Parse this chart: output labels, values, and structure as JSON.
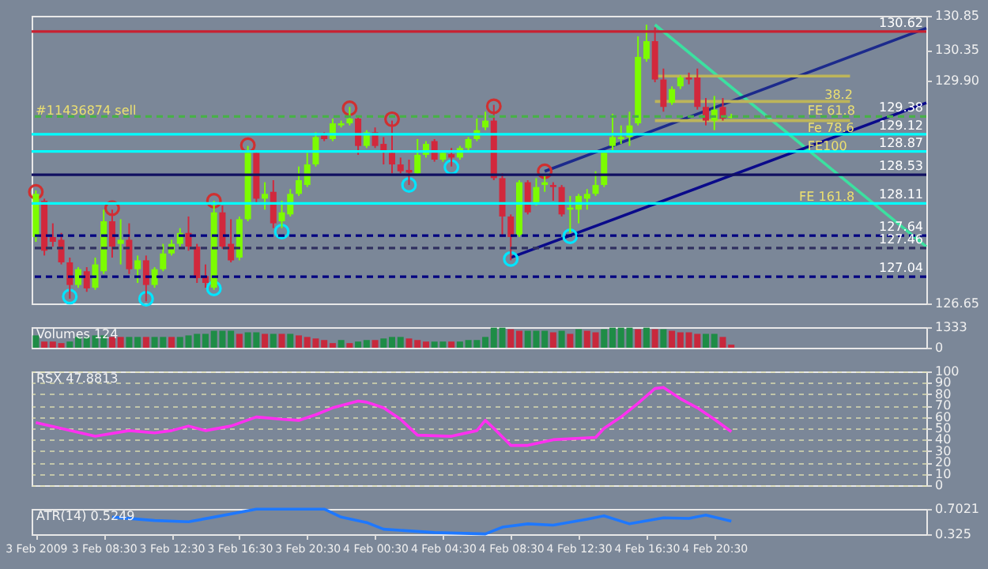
{
  "chart_data": [
    {
      "type": "candlestick",
      "x": [
        "2009-02-03T04:30",
        "2009-02-03T05:00",
        "2009-02-03T05:30",
        "2009-02-03T06:00",
        "2009-02-03T06:30",
        "2009-02-03T07:00",
        "2009-02-03T07:30",
        "2009-02-03T08:00",
        "2009-02-03T08:30",
        "2009-02-03T09:00",
        "2009-02-03T09:30",
        "2009-02-03T10:00",
        "2009-02-03T10:30",
        "2009-02-03T11:00",
        "2009-02-03T11:30",
        "2009-02-03T12:00",
        "2009-02-03T12:30",
        "2009-02-03T13:00",
        "2009-02-03T13:30",
        "2009-02-03T14:00",
        "2009-02-03T14:30",
        "2009-02-03T15:00",
        "2009-02-03T15:30",
        "2009-02-03T16:00",
        "2009-02-03T16:30",
        "2009-02-03T17:00",
        "2009-02-03T17:30",
        "2009-02-03T18:00",
        "2009-02-03T18:30",
        "2009-02-03T19:00",
        "2009-02-03T19:30",
        "2009-02-03T20:00",
        "2009-02-03T20:30",
        "2009-02-03T21:00",
        "2009-02-03T21:30",
        "2009-02-03T22:00",
        "2009-02-03T22:30",
        "2009-02-03T23:00",
        "2009-02-03T23:30",
        "2009-02-04T00:00",
        "2009-02-04T00:30",
        "2009-02-04T01:00",
        "2009-02-04T01:30",
        "2009-02-04T02:00",
        "2009-02-04T02:30",
        "2009-02-04T03:00",
        "2009-02-04T03:30",
        "2009-02-04T04:00",
        "2009-02-04T04:30",
        "2009-02-04T05:00",
        "2009-02-04T05:30",
        "2009-02-04T06:00",
        "2009-02-04T06:30",
        "2009-02-04T07:00",
        "2009-02-04T07:30",
        "2009-02-04T08:00",
        "2009-02-04T08:30",
        "2009-02-04T09:00",
        "2009-02-04T09:30",
        "2009-02-04T10:00",
        "2009-02-04T10:30",
        "2009-02-04T11:00",
        "2009-02-04T11:30",
        "2009-02-04T12:00",
        "2009-02-04T12:30",
        "2009-02-04T13:00",
        "2009-02-04T13:30",
        "2009-02-04T14:00",
        "2009-02-04T14:30",
        "2009-02-04T15:00",
        "2009-02-04T15:30",
        "2009-02-04T16:00",
        "2009-02-04T16:30",
        "2009-02-04T17:00",
        "2009-02-04T17:30",
        "2009-02-04T18:00",
        "2009-02-04T18:30",
        "2009-02-04T19:00",
        "2009-02-04T19:30",
        "2009-02-04T20:00",
        "2009-02-04T20:30",
        "2009-02-04T21:00",
        "2009-02-04T21:30"
      ],
      "ohlc": [
        [
          127.62,
          128.3,
          127.55,
          128.25
        ],
        [
          128.15,
          128.18,
          127.35,
          127.42
        ],
        [
          127.62,
          127.82,
          127.48,
          127.55
        ],
        [
          127.58,
          127.68,
          127.22,
          127.25
        ],
        [
          127.25,
          127.32,
          126.72,
          126.92
        ],
        [
          126.92,
          127.18,
          126.88,
          127.15
        ],
        [
          127.12,
          127.18,
          126.82,
          126.87
        ],
        [
          126.88,
          127.32,
          126.85,
          127.22
        ],
        [
          127.12,
          128.02,
          127.08,
          127.85
        ],
        [
          127.85,
          128.02,
          127.32,
          127.48
        ],
        [
          127.52,
          127.88,
          127.22,
          127.58
        ],
        [
          127.58,
          127.82,
          127.08,
          127.15
        ],
        [
          127.15,
          127.35,
          126.95,
          127.28
        ],
        [
          127.28,
          127.35,
          126.68,
          126.92
        ],
        [
          126.92,
          127.18,
          126.88,
          127.15
        ],
        [
          127.15,
          127.52,
          127.12,
          127.38
        ],
        [
          127.38,
          127.58,
          127.35,
          127.52
        ],
        [
          127.52,
          127.75,
          127.48,
          127.68
        ],
        [
          127.68,
          127.92,
          127.42,
          127.48
        ],
        [
          127.48,
          127.52,
          126.95,
          127.02
        ],
        [
          127.05,
          127.22,
          126.88,
          126.95
        ],
        [
          126.88,
          128.15,
          126.85,
          127.98
        ],
        [
          127.98,
          128.08,
          127.45,
          127.48
        ],
        [
          127.52,
          127.88,
          127.25,
          127.28
        ],
        [
          127.32,
          127.92,
          127.28,
          127.88
        ],
        [
          127.88,
          128.95,
          127.85,
          128.85
        ],
        [
          128.85,
          128.88,
          128.12,
          128.18
        ],
        [
          128.18,
          128.42,
          128.02,
          128.25
        ],
        [
          128.28,
          128.45,
          127.75,
          127.82
        ],
        [
          127.85,
          128.15,
          127.75,
          127.98
        ],
        [
          127.95,
          128.32,
          127.92,
          128.25
        ],
        [
          128.25,
          128.65,
          128.22,
          128.45
        ],
        [
          128.38,
          128.85,
          128.35,
          128.68
        ],
        [
          128.68,
          129.15,
          128.65,
          129.08
        ],
        [
          129.12,
          129.15,
          129.02,
          129.05
        ],
        [
          129.05,
          129.35,
          129.02,
          129.28
        ],
        [
          129.25,
          129.32,
          129.22,
          129.28
        ],
        [
          129.28,
          129.52,
          129.25,
          129.35
        ],
        [
          129.35,
          129.38,
          128.82,
          128.95
        ],
        [
          128.95,
          129.18,
          128.92,
          129.15
        ],
        [
          129.15,
          129.22,
          128.92,
          128.95
        ],
        [
          128.98,
          129.08,
          128.68,
          128.88
        ],
        [
          128.85,
          129.32,
          128.55,
          128.68
        ],
        [
          128.68,
          128.78,
          128.55,
          128.58
        ],
        [
          128.6,
          128.75,
          128.38,
          128.56
        ],
        [
          128.55,
          129.05,
          128.52,
          128.82
        ],
        [
          128.82,
          129.02,
          128.78,
          128.98
        ],
        [
          129.02,
          129.05,
          128.72,
          128.75
        ],
        [
          128.75,
          128.88,
          128.72,
          128.85
        ],
        [
          128.83,
          128.92,
          128.65,
          128.78
        ],
        [
          128.78,
          128.95,
          128.75,
          128.92
        ],
        [
          128.92,
          129.08,
          128.88,
          129.05
        ],
        [
          129.05,
          129.35,
          129.02,
          129.18
        ],
        [
          129.22,
          129.45,
          129.18,
          129.32
        ],
        [
          129.32,
          129.55,
          128.45,
          128.48
        ],
        [
          128.48,
          128.55,
          127.62,
          127.92
        ],
        [
          127.92,
          127.95,
          127.28,
          127.62
        ],
        [
          127.65,
          128.45,
          127.62,
          128.42
        ],
        [
          128.42,
          128.45,
          127.95,
          127.98
        ],
        [
          128.12,
          128.48,
          128.08,
          128.35
        ],
        [
          128.38,
          128.52,
          128.28,
          128.42
        ],
        [
          128.38,
          128.42,
          128.15,
          128.35
        ],
        [
          128.35,
          128.38,
          127.92,
          127.95
        ],
        [
          128.02,
          128.22,
          127.68,
          128.05
        ],
        [
          128.02,
          128.25,
          127.82,
          128.22
        ],
        [
          128.18,
          128.32,
          128.02,
          128.25
        ],
        [
          128.25,
          128.58,
          128.22,
          128.38
        ],
        [
          128.38,
          128.88,
          128.35,
          128.85
        ],
        [
          128.95,
          129.42,
          128.88,
          129.08
        ],
        [
          129.05,
          129.25,
          128.98,
          129.08
        ],
        [
          129.08,
          129.45,
          128.95,
          129.25
        ],
        [
          129.28,
          130.55,
          129.25,
          130.25
        ],
        [
          130.22,
          130.72,
          130.18,
          130.48
        ],
        [
          130.48,
          130.68,
          129.88,
          129.92
        ],
        [
          129.92,
          130.08,
          129.45,
          129.52
        ],
        [
          129.58,
          129.82,
          129.55,
          129.78
        ],
        [
          129.82,
          129.98,
          129.78,
          129.95
        ],
        [
          129.95,
          130.02,
          129.85,
          129.92
        ],
        [
          129.95,
          130.08,
          129.48,
          129.52
        ],
        [
          129.52,
          129.65,
          129.25,
          129.32
        ],
        [
          129.32,
          129.68,
          129.18,
          129.48
        ],
        [
          129.52,
          129.65,
          129.32,
          129.35
        ],
        [
          129.36,
          129.42,
          129.35,
          129.38
        ]
      ],
      "colors": [
        "#7cfc00",
        "#d2283c",
        "#d2283c",
        "#d2283c",
        "#d2283c",
        "#7cfc00",
        "#d2283c",
        "#7cfc00",
        "#7cfc00",
        "#d2283c",
        "#7cfc00",
        "#d2283c",
        "#7cfc00",
        "#d2283c",
        "#7cfc00",
        "#7cfc00",
        "#7cfc00",
        "#7cfc00",
        "#d2283c",
        "#d2283c",
        "#d2283c",
        "#7cfc00",
        "#d2283c",
        "#d2283c",
        "#7cfc00",
        "#7cfc00",
        "#d2283c",
        "#7cfc00",
        "#d2283c",
        "#7cfc00",
        "#7cfc00",
        "#7cfc00",
        "#7cfc00",
        "#7cfc00",
        "#d2283c",
        "#7cfc00",
        "#7cfc00",
        "#7cfc00",
        "#d2283c",
        "#7cfc00",
        "#d2283c",
        "#d2283c",
        "#d2283c",
        "#d2283c",
        "#d2283c",
        "#7cfc00",
        "#7cfc00",
        "#d2283c",
        "#7cfc00",
        "#d2283c",
        "#7cfc00",
        "#7cfc00",
        "#7cfc00",
        "#7cfc00",
        "#d2283c",
        "#d2283c",
        "#d2283c",
        "#7cfc00",
        "#d2283c",
        "#7cfc00",
        "#7cfc00",
        "#d2283c",
        "#d2283c",
        "#7cfc00",
        "#7cfc00",
        "#7cfc00",
        "#7cfc00",
        "#7cfc00",
        "#7cfc00",
        "#7cfc00",
        "#7cfc00",
        "#7cfc00",
        "#7cfc00",
        "#d2283c",
        "#d2283c",
        "#7cfc00",
        "#7cfc00",
        "#d2283c",
        "#d2283c",
        "#d2283c",
        "#7cfc00",
        "#d2283c",
        "#7cfc00"
      ],
      "series": [
        {
          "type": "line",
          "color": "#3ce0a0",
          "x": [
            "2009-02-04T17:00",
            "2009-02-05T09:00"
          ],
          "values": [
            130.72,
            127.48
          ]
        },
        {
          "type": "line",
          "color": "#0a0a8a",
          "x": [
            "2009-02-04T08:30",
            "2009-02-05T09:00"
          ],
          "values": [
            127.32,
            129.58
          ]
        },
        {
          "type": "line",
          "color": "#1c2a8c",
          "x": [
            "2009-02-04T10:30",
            "2009-02-05T09:00"
          ],
          "values": [
            128.58,
            130.67
          ]
        },
        {
          "type": "line",
          "color": "#bdb55a",
          "x": [
            "2009-02-04T17:00",
            "2009-02-05T04:30"
          ],
          "values": [
            129.97,
            129.97
          ]
        },
        {
          "type": "line",
          "color": "#bdb55a",
          "x": [
            "2009-02-04T17:00",
            "2009-02-05T04:30"
          ],
          "values": [
            129.6,
            129.6
          ]
        },
        {
          "type": "line",
          "color": "#bdb55a",
          "x": [
            "2009-02-04T17:00",
            "2009-02-05T04:30"
          ],
          "values": [
            129.32,
            129.32
          ]
        },
        {
          "type": "scatter",
          "color": "#00e5ff",
          "x": [
            "2009-02-03T06:30",
            "2009-02-03T11:00",
            "2009-02-03T15:00",
            "2009-02-03T19:00",
            "2009-02-04T02:30",
            "2009-02-04T05:00",
            "2009-02-04T08:30",
            "2009-02-04T12:00"
          ],
          "values": [
            126.75,
            126.72,
            126.87,
            127.7,
            128.38,
            128.64,
            127.3,
            127.63
          ]
        },
        {
          "type": "scatter",
          "color": "#d03030",
          "x": [
            "2009-02-03T04:30",
            "2009-02-03T09:00",
            "2009-02-03T15:00",
            "2009-02-03T17:00",
            "2009-02-03T23:00",
            "2009-02-04T01:30",
            "2009-02-04T07:30",
            "2009-02-04T10:30"
          ],
          "values": [
            128.28,
            128.04,
            128.15,
            128.96,
            129.5,
            129.34,
            129.53,
            128.58
          ]
        }
      ],
      "ref_lines": [
        {
          "axis": "y",
          "value": 130.62,
          "label": "130.62",
          "color": "#c82030",
          "line_style": "solid"
        },
        {
          "axis": "y",
          "value": 129.38,
          "label": "129.38",
          "color": "#48b048",
          "line_style": "dashed"
        },
        {
          "axis": "y",
          "value": 129.12,
          "label": "129.12",
          "color": "#00ffff",
          "line_style": "solid"
        },
        {
          "axis": "y",
          "value": 128.87,
          "label": "128.87",
          "color": "#00ffff",
          "line_style": "solid"
        },
        {
          "axis": "y",
          "value": 128.53,
          "label": "128.53",
          "color": "#101060",
          "line_style": "solid"
        },
        {
          "axis": "y",
          "value": 128.11,
          "label": "128.11",
          "color": "#00ffff",
          "line_style": "solid"
        },
        {
          "axis": "y",
          "value": 127.64,
          "label": "127.64",
          "color": "#000080",
          "line_style": "dashed"
        },
        {
          "axis": "y",
          "value": 127.46,
          "label": "127.46",
          "color": "#303060",
          "line_style": "dashed"
        },
        {
          "axis": "y",
          "value": 127.04,
          "label": "127.04",
          "color": "#000080",
          "line_style": "dashed"
        }
      ],
      "annotations": [
        {
          "text": "#11436874 sell",
          "x": "2009-02-03T04:30",
          "y": 129.45
        },
        {
          "text": "38.2",
          "x": "2009-02-05T03:00",
          "y": 129.68
        },
        {
          "text": "FE 61.8",
          "x": "2009-02-05T02:00",
          "y": 129.45
        },
        {
          "text": "Fe 78.6",
          "x": "2009-02-05T02:00",
          "y": 129.2
        },
        {
          "text": "FE100",
          "x": "2009-02-05T02:00",
          "y": 128.93
        },
        {
          "text": "FE 161.8",
          "x": "2009-02-05T01:30",
          "y": 128.2
        }
      ],
      "xlim": [
        "2009-02-03T04:15",
        "2009-02-05T09:00"
      ],
      "ylim": [
        126.65,
        130.85
      ],
      "yticks": [
        126.65,
        {
          "value": 129.9,
          "label": "129.90"
        },
        130.35,
        130.85
      ],
      "tick_labels": "y"
    },
    {
      "type": "bar",
      "title": "Volumes 124",
      "x": [
        "2009-02-03T04:30",
        "2009-02-03T05:00",
        "2009-02-03T05:30",
        "2009-02-03T06:00",
        "2009-02-03T06:30",
        "2009-02-03T07:00",
        "2009-02-03T07:30",
        "2009-02-03T08:00",
        "2009-02-03T08:30",
        "2009-02-03T09:00",
        "2009-02-03T09:30",
        "2009-02-03T10:00",
        "2009-02-03T10:30",
        "2009-02-03T11:00",
        "2009-02-03T11:30",
        "2009-02-03T12:00",
        "2009-02-03T12:30",
        "2009-02-03T13:00",
        "2009-02-03T13:30",
        "2009-02-03T14:00",
        "2009-02-03T14:30",
        "2009-02-03T15:00",
        "2009-02-03T15:30",
        "2009-02-03T16:00",
        "2009-02-03T16:30",
        "2009-02-03T17:00",
        "2009-02-03T17:30",
        "2009-02-03T18:00",
        "2009-02-03T18:30",
        "2009-02-03T19:00",
        "2009-02-03T19:30",
        "2009-02-03T20:00",
        "2009-02-03T20:30",
        "2009-02-03T21:00",
        "2009-02-03T21:30",
        "2009-02-03T22:00",
        "2009-02-03T22:30",
        "2009-02-03T23:00",
        "2009-02-03T23:30",
        "2009-02-04T00:00",
        "2009-02-04T00:30",
        "2009-02-04T01:00",
        "2009-02-04T01:30",
        "2009-02-04T02:00",
        "2009-02-04T02:30",
        "2009-02-04T03:00",
        "2009-02-04T03:30",
        "2009-02-04T04:00",
        "2009-02-04T04:30",
        "2009-02-04T05:00",
        "2009-02-04T05:30",
        "2009-02-04T06:00",
        "2009-02-04T06:30",
        "2009-02-04T07:00",
        "2009-02-04T07:30",
        "2009-02-04T08:00",
        "2009-02-04T08:30",
        "2009-02-04T09:00",
        "2009-02-04T09:30",
        "2009-02-04T10:00",
        "2009-02-04T10:30",
        "2009-02-04T11:00",
        "2009-02-04T11:30",
        "2009-02-04T12:00",
        "2009-02-04T12:30",
        "2009-02-04T13:00",
        "2009-02-04T13:30",
        "2009-02-04T14:00",
        "2009-02-04T14:30",
        "2009-02-04T15:00",
        "2009-02-04T15:30",
        "2009-02-04T16:00",
        "2009-02-04T16:30",
        "2009-02-04T17:00",
        "2009-02-04T17:30",
        "2009-02-04T18:00",
        "2009-02-04T18:30",
        "2009-02-04T19:00",
        "2009-02-04T19:30",
        "2009-02-04T20:00",
        "2009-02-04T20:30",
        "2009-02-04T21:00",
        "2009-02-04T21:30"
      ],
      "values": [
        800,
        400,
        400,
        300,
        400,
        700,
        700,
        800,
        800,
        700,
        700,
        700,
        700,
        700,
        700,
        700,
        700,
        700,
        800,
        900,
        900,
        1100,
        1100,
        1100,
        900,
        1000,
        1000,
        900,
        900,
        900,
        900,
        800,
        700,
        600,
        500,
        300,
        500,
        300,
        400,
        500,
        500,
        600,
        700,
        700,
        600,
        500,
        400,
        400,
        400,
        400,
        400,
        500,
        500,
        700,
        1300,
        1300,
        1200,
        1100,
        1100,
        1100,
        1100,
        1000,
        1100,
        900,
        1200,
        1100,
        1000,
        1200,
        1300,
        1300,
        1300,
        1200,
        1300,
        1200,
        1200,
        1100,
        1000,
        1000,
        900,
        900,
        900,
        700,
        200
      ],
      "colors": [
        "#1e8c46",
        "#c8283c",
        "#c8283c",
        "#c8283c",
        "#1e8c46",
        "#1e8c46",
        "#1e8c46",
        "#1e8c46",
        "#1e8c46",
        "#c8283c",
        "#c8283c",
        "#1e8c46",
        "#1e8c46",
        "#c8283c",
        "#1e8c46",
        "#1e8c46",
        "#c8283c",
        "#1e8c46",
        "#1e8c46",
        "#1e8c46",
        "#1e8c46",
        "#1e8c46",
        "#1e8c46",
        "#1e8c46",
        "#c8283c",
        "#1e8c46",
        "#1e8c46",
        "#c8283c",
        "#1e8c46",
        "#c8283c",
        "#1e8c46",
        "#c8283c",
        "#c8283c",
        "#c8283c",
        "#c8283c",
        "#c8283c",
        "#1e8c46",
        "#c8283c",
        "#1e8c46",
        "#1e8c46",
        "#c8283c",
        "#1e8c46",
        "#1e8c46",
        "#1e8c46",
        "#c8283c",
        "#c8283c",
        "#c8283c",
        "#1e8c46",
        "#1e8c46",
        "#c8283c",
        "#1e8c46",
        "#1e8c46",
        "#1e8c46",
        "#1e8c46",
        "#1e8c46",
        "#1e8c46",
        "#c8283c",
        "#c8283c",
        "#1e8c46",
        "#1e8c46",
        "#1e8c46",
        "#c8283c",
        "#1e8c46",
        "#c8283c",
        "#1e8c46",
        "#c8283c",
        "#c8283c",
        "#1e8c46",
        "#1e8c46",
        "#1e8c46",
        "#1e8c46",
        "#c8283c",
        "#1e8c46",
        "#c8283c",
        "#1e8c46",
        "#c8283c",
        "#c8283c",
        "#c8283c",
        "#c8283c",
        "#1e8c46",
        "#1e8c46",
        "#c8283c",
        "#c8283c"
      ],
      "xlim": [
        "2009-02-03T04:15",
        "2009-02-05T09:00"
      ],
      "ylim": [
        0,
        1333
      ],
      "yticks": [
        0,
        1333
      ],
      "tick_labels": "y"
    },
    {
      "type": "line",
      "title": "RSX 47.8813",
      "series": [
        {
          "color": "#ff30f0",
          "x": [
            "2009-02-03T04:30",
            "2009-02-03T08:00",
            "2009-02-03T10:00",
            "2009-02-03T11:30",
            "2009-02-03T12:30",
            "2009-02-03T13:30",
            "2009-02-03T14:30",
            "2009-02-03T16:00",
            "2009-02-03T17:30",
            "2009-02-03T19:00",
            "2009-02-03T20:00",
            "2009-02-03T21:00",
            "2009-02-03T22:00",
            "2009-02-03T23:30",
            "2009-02-04T00:00",
            "2009-02-04T01:00",
            "2009-02-04T02:00",
            "2009-02-04T03:00",
            "2009-02-04T05:00",
            "2009-02-04T06:30",
            "2009-02-04T07:00",
            "2009-02-04T07:30",
            "2009-02-04T08:30",
            "2009-02-04T09:30",
            "2009-02-04T11:00",
            "2009-02-04T13:30",
            "2009-02-04T14:00",
            "2009-02-04T15:00",
            "2009-02-04T16:00",
            "2009-02-04T17:00",
            "2009-02-04T17:30",
            "2009-02-04T18:30",
            "2009-02-04T19:30",
            "2009-02-04T20:30",
            "2009-02-04T21:30"
          ],
          "values": [
            55,
            43,
            48,
            46,
            48,
            52,
            48,
            52,
            60,
            58,
            57,
            62,
            68,
            74,
            73,
            68,
            58,
            44,
            43,
            48,
            57,
            50,
            35,
            35,
            40,
            42,
            50,
            60,
            72,
            85,
            86,
            76,
            68,
            58,
            47
          ]
        }
      ],
      "xlim": [
        "2009-02-03T04:15",
        "2009-02-05T09:00"
      ],
      "ylim": [
        0,
        100
      ],
      "yticks": [
        0,
        10,
        20,
        30,
        40,
        50,
        60,
        70,
        80,
        90,
        100
      ],
      "grid": "y",
      "tick_labels": "y"
    },
    {
      "type": "line",
      "title": "ATR(14) 0.5249",
      "series": [
        {
          "color": "#1e78ff",
          "x": [
            "2009-02-03T09:00",
            "2009-02-03T11:30",
            "2009-02-03T13:30",
            "2009-02-03T15:00",
            "2009-02-03T17:30",
            "2009-02-03T21:30",
            "2009-02-03T22:30",
            "2009-02-04T00:00",
            "2009-02-04T01:00",
            "2009-02-04T04:00",
            "2009-02-04T07:00",
            "2009-02-04T08:00",
            "2009-02-04T09:30",
            "2009-02-04T11:00",
            "2009-02-04T13:00",
            "2009-02-04T14:00",
            "2009-02-04T15:30",
            "2009-02-04T17:30",
            "2009-02-04T19:00",
            "2009-02-04T20:00",
            "2009-02-04T21:30"
          ],
          "values": [
            0.58,
            0.53,
            0.51,
            0.58,
            0.7,
            0.7,
            0.58,
            0.5,
            0.4,
            0.35,
            0.33,
            0.43,
            0.48,
            0.46,
            0.55,
            0.6,
            0.48,
            0.57,
            0.56,
            0.61,
            0.52
          ]
        }
      ],
      "xlim": [
        "2009-02-03T04:15",
        "2009-02-05T09:00"
      ],
      "xticks": [
        {
          "value": "2009-02-03T04:30",
          "label": "3 Feb 2009"
        },
        {
          "value": "2009-02-03T08:30",
          "label": "3 Feb 08:30"
        },
        {
          "value": "2009-02-03T12:30",
          "label": "3 Feb 12:30"
        },
        {
          "value": "2009-02-03T16:30",
          "label": "3 Feb 16:30"
        },
        {
          "value": "2009-02-03T20:30",
          "label": "3 Feb 20:30"
        },
        {
          "value": "2009-02-04T00:30",
          "label": "4 Feb 00:30"
        },
        {
          "value": "2009-02-04T04:30",
          "label": "4 Feb 04:30"
        },
        {
          "value": "2009-02-04T08:30",
          "label": "4 Feb 08:30"
        },
        {
          "value": "2009-02-04T12:30",
          "label": "4 Feb 12:30"
        },
        {
          "value": "2009-02-04T16:30",
          "label": "4 Feb 16:30"
        },
        {
          "value": "2009-02-04T20:30",
          "label": "4 Feb 20:30"
        }
      ],
      "ylim": [
        0.325,
        0.7021
      ],
      "yticks": [
        0.325,
        0.7021
      ]
    }
  ]
}
